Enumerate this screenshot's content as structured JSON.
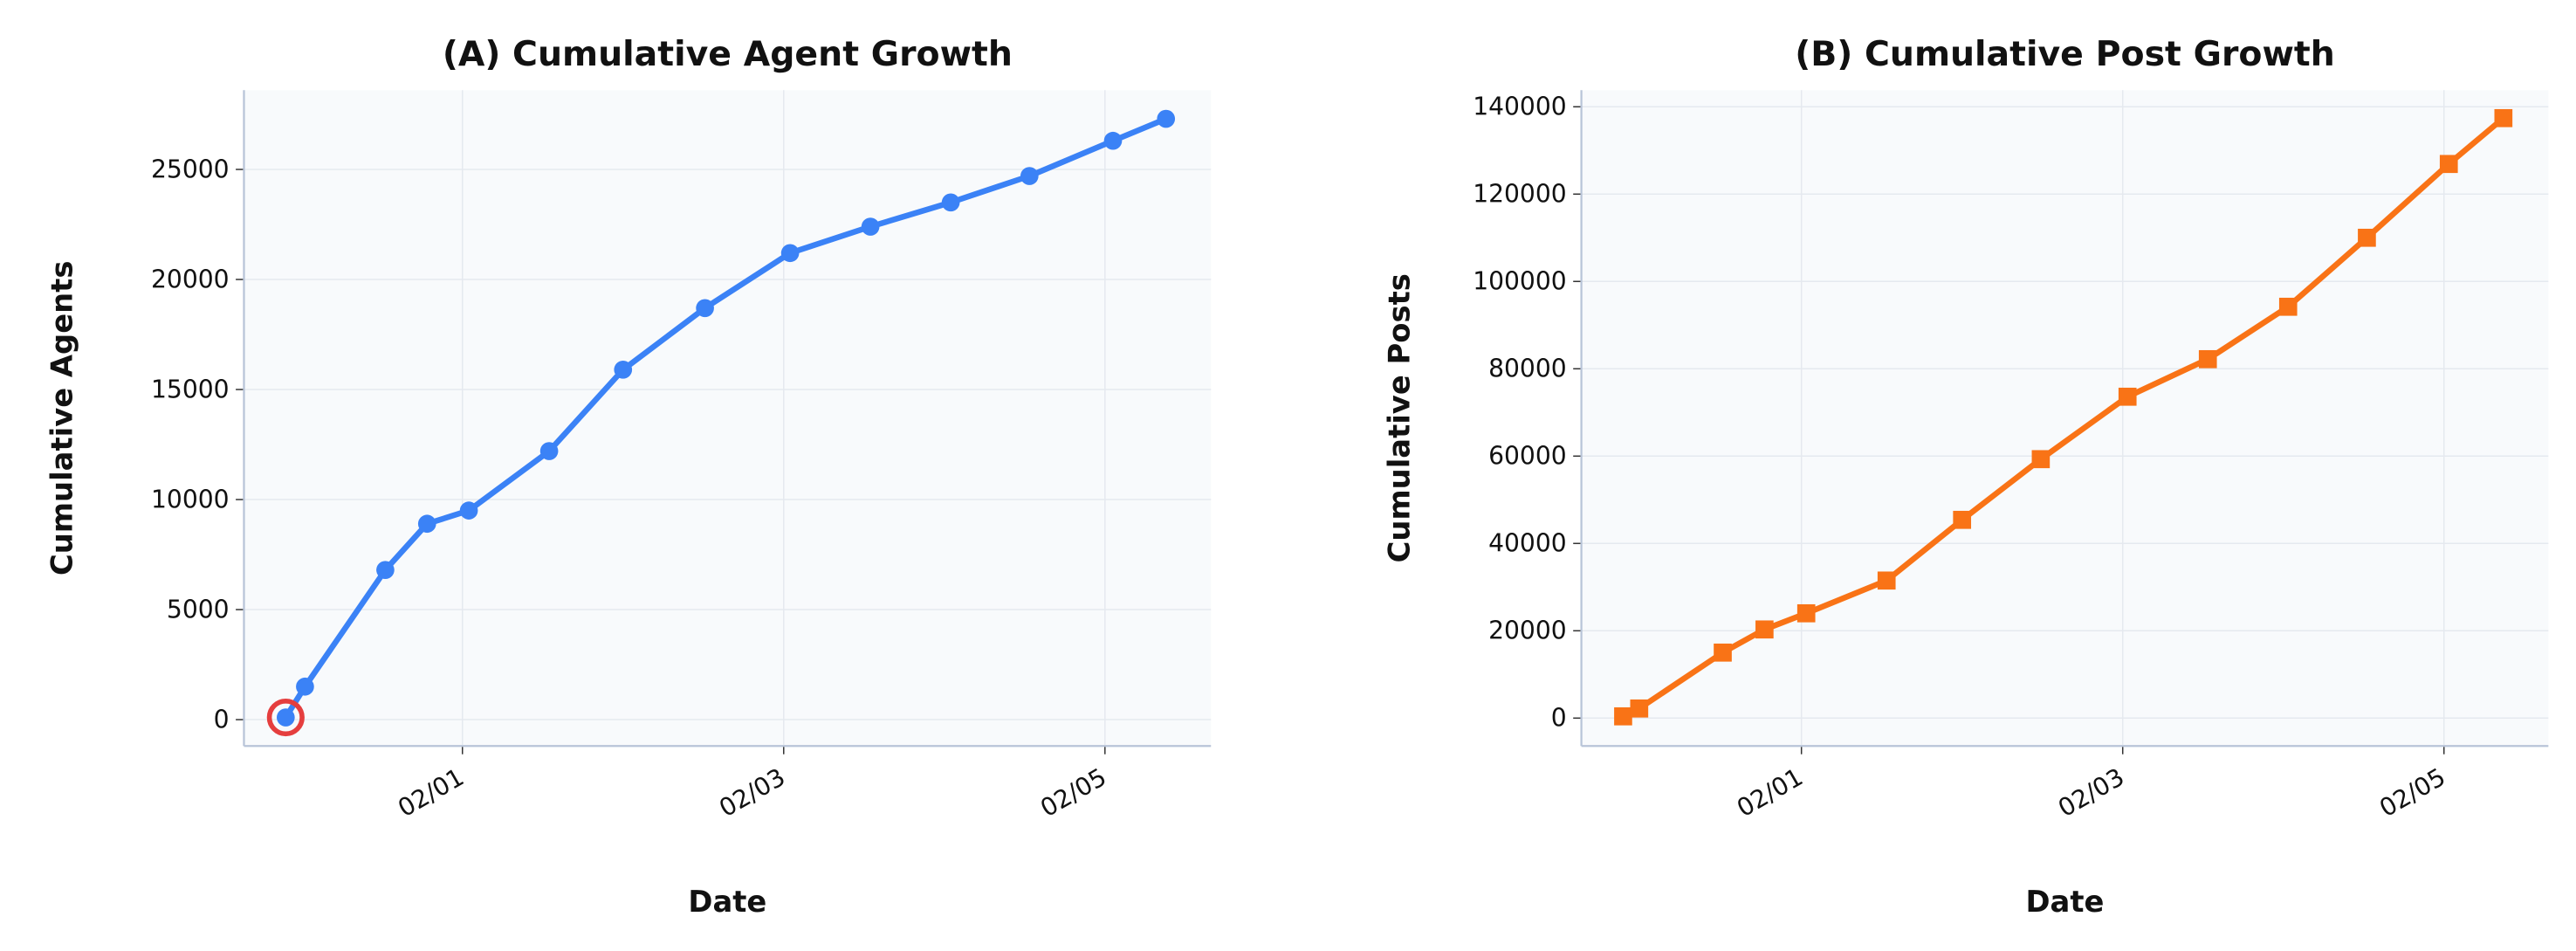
{
  "chart_data": [
    {
      "type": "line",
      "title": "(A) Cumulative Agent Growth",
      "xlabel": "Date",
      "ylabel": "Cumulative Agents",
      "x": [
        -0.1,
        0.02,
        0.52,
        0.78,
        1.04,
        1.54,
        2.0,
        2.51,
        3.04,
        3.54,
        4.04,
        4.53,
        5.05,
        5.38
      ],
      "series": [
        {
          "name": "Cumulative Agents",
          "color": "#3b82f6",
          "marker": "circle",
          "values": [
            100,
            1500,
            6800,
            8900,
            9500,
            12200,
            15900,
            18700,
            21200,
            22400,
            23500,
            24700,
            26300,
            27300
          ]
        }
      ],
      "highlight": {
        "index": 0,
        "color": "#e53e3e"
      },
      "xlim": [
        -0.36,
        5.66
      ],
      "xticks": [
        {
          "value": 1,
          "label": "02/01"
        },
        {
          "value": 3,
          "label": "02/03"
        },
        {
          "value": 5,
          "label": "02/05"
        }
      ],
      "ylim": [
        -1200,
        28600
      ],
      "yticks": [
        0,
        5000,
        10000,
        15000,
        20000,
        25000
      ],
      "grid": true
    },
    {
      "type": "line",
      "title": "(B) Cumulative Post Growth",
      "xlabel": "Date",
      "ylabel": "Cumulative Posts",
      "x": [
        -0.11,
        -0.01,
        0.51,
        0.77,
        1.03,
        1.53,
        2.0,
        2.49,
        3.03,
        3.53,
        4.03,
        4.52,
        5.03,
        5.37
      ],
      "series": [
        {
          "name": "Cumulative Posts",
          "color": "#f97316",
          "marker": "square",
          "values": [
            400,
            2200,
            15000,
            20300,
            24000,
            31500,
            45400,
            59300,
            73600,
            82200,
            94200,
            110000,
            126900,
            137400
          ]
        }
      ],
      "xlim": [
        -0.37,
        5.65
      ],
      "xticks": [
        {
          "value": 1,
          "label": "02/01"
        },
        {
          "value": 3,
          "label": "02/03"
        },
        {
          "value": 5,
          "label": "02/05"
        }
      ],
      "ylim": [
        -6400,
        143800
      ],
      "yticks": [
        0,
        20000,
        40000,
        60000,
        80000,
        100000,
        120000,
        140000
      ],
      "grid": true
    }
  ]
}
